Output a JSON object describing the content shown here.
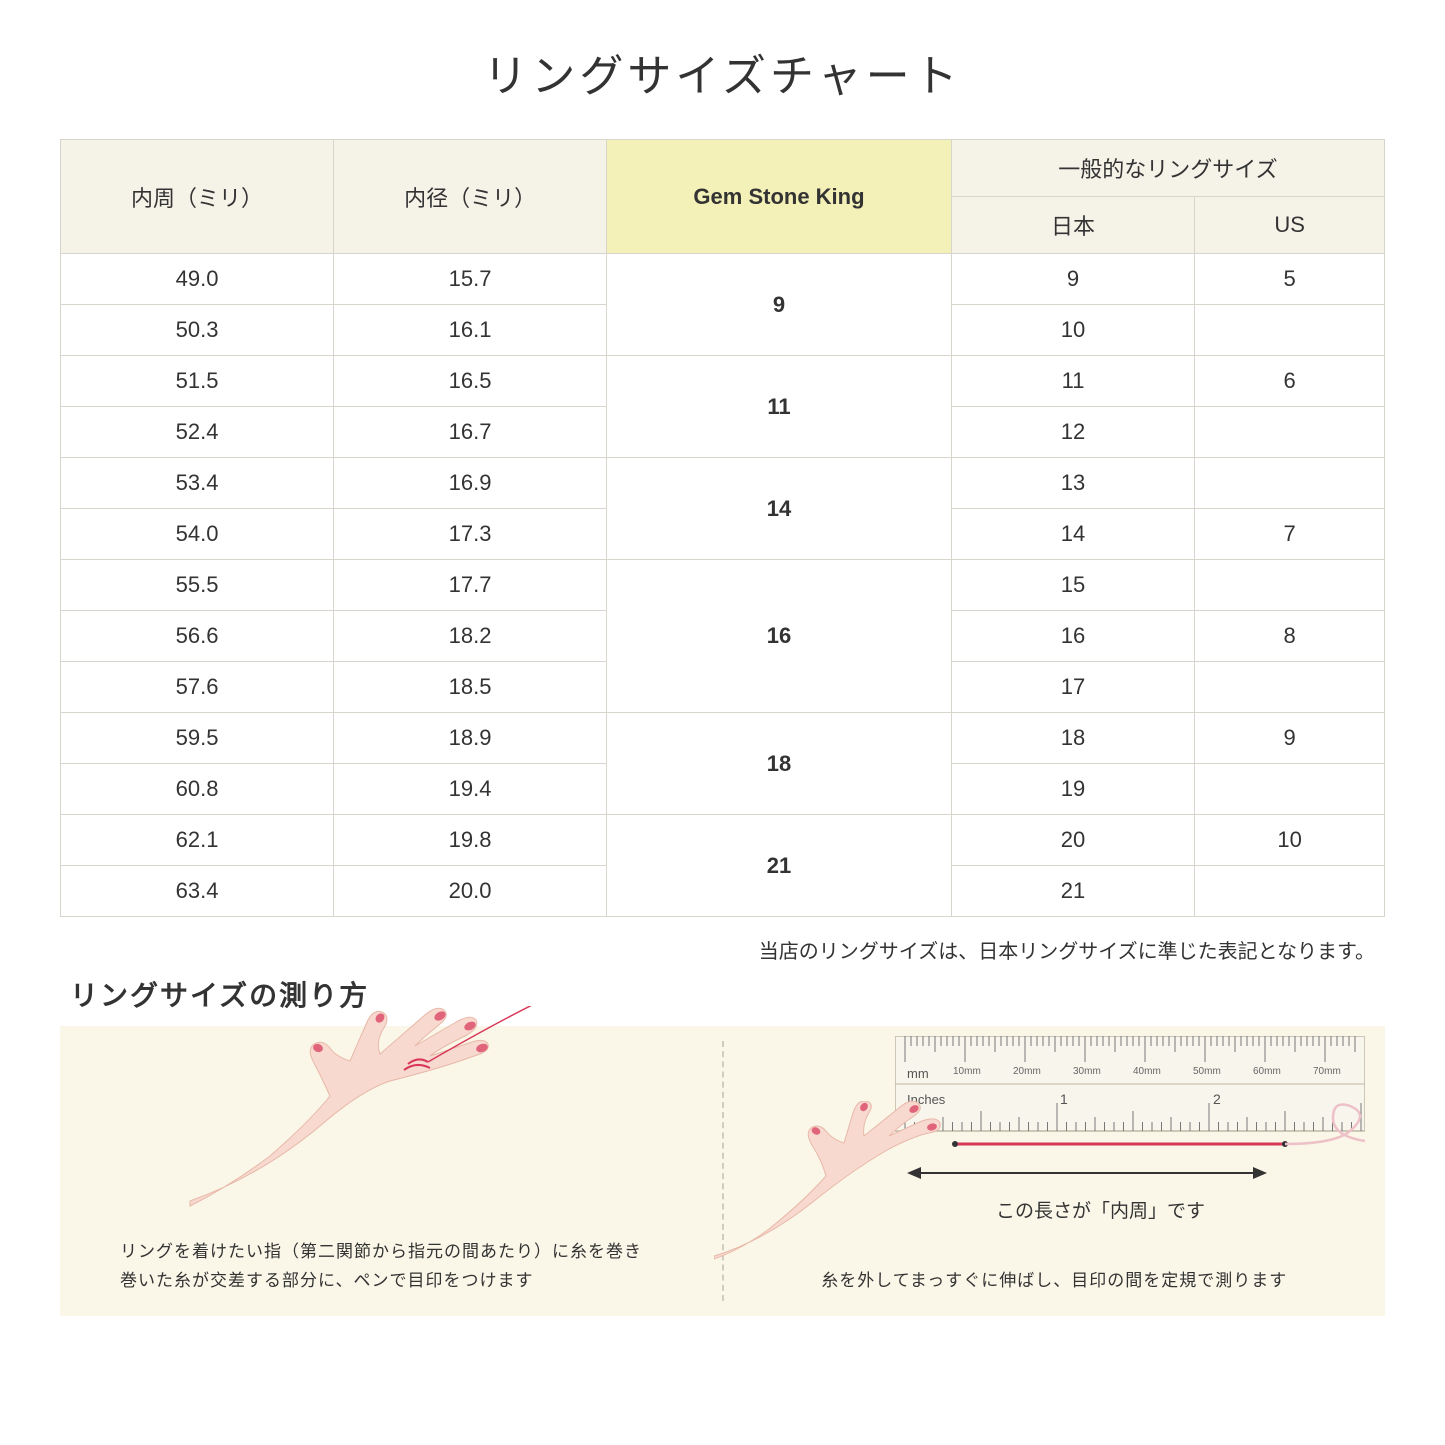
{
  "title": "リングサイズチャート",
  "table": {
    "headers": {
      "col1": "内周（ミリ）",
      "col2": "内径（ミリ）",
      "col3": "Gem Stone King",
      "col4_group": "一般的なリングサイズ",
      "col4a": "日本",
      "col4b": "US"
    },
    "groups": [
      {
        "gsk": "9",
        "rows": [
          {
            "c": "49.0",
            "d": "15.7",
            "jp": "9",
            "us": "5"
          },
          {
            "c": "50.3",
            "d": "16.1",
            "jp": "10",
            "us": ""
          }
        ]
      },
      {
        "gsk": "11",
        "rows": [
          {
            "c": "51.5",
            "d": "16.5",
            "jp": "11",
            "us": "6"
          },
          {
            "c": "52.4",
            "d": "16.7",
            "jp": "12",
            "us": ""
          }
        ]
      },
      {
        "gsk": "14",
        "rows": [
          {
            "c": "53.4",
            "d": "16.9",
            "jp": "13",
            "us": ""
          },
          {
            "c": "54.0",
            "d": "17.3",
            "jp": "14",
            "us": "7"
          }
        ]
      },
      {
        "gsk": "16",
        "rows": [
          {
            "c": "55.5",
            "d": "17.7",
            "jp": "15",
            "us": ""
          },
          {
            "c": "56.6",
            "d": "18.2",
            "jp": "16",
            "us": "8"
          },
          {
            "c": "57.6",
            "d": "18.5",
            "jp": "17",
            "us": ""
          }
        ]
      },
      {
        "gsk": "18",
        "rows": [
          {
            "c": "59.5",
            "d": "18.9",
            "jp": "18",
            "us": "9"
          },
          {
            "c": "60.8",
            "d": "19.4",
            "jp": "19",
            "us": ""
          }
        ]
      },
      {
        "gsk": "21",
        "rows": [
          {
            "c": "62.1",
            "d": "19.8",
            "jp": "20",
            "us": "10"
          },
          {
            "c": "63.4",
            "d": "20.0",
            "jp": "21",
            "us": ""
          }
        ]
      }
    ],
    "header_bg": "#f5f2e8",
    "gsk_bg": "#f3f0b8",
    "border_color": "#d8d5cc"
  },
  "note": "当店のリングサイズは、日本リングサイズに準じた表記となります。",
  "measure": {
    "title": "リングサイズの測り方",
    "left_text_1": "リングを着けたい指（第二関節から指元の間あたり）に糸を巻き",
    "left_text_2": "巻いた糸が交差する部分に、ペンで目印をつけます",
    "right_label": "この長さが「内周」です",
    "right_text": "糸を外してまっすぐに伸ばし、目印の間を定規で測ります",
    "ruler_mm": "mm",
    "ruler_inches": "Inches",
    "ruler_ticks": [
      "10mm",
      "20mm",
      "30mm",
      "40mm",
      "50mm",
      "60mm",
      "70mm"
    ],
    "bg_color": "#faf7e8"
  },
  "colors": {
    "hand_skin": "#f7d9cf",
    "hand_shadow": "#e8b8a8",
    "nail": "#e0647a",
    "thread": "#d93858",
    "ruler_body": "#f8f5ec",
    "ruler_border": "#bfb8a5",
    "text": "#333333"
  }
}
